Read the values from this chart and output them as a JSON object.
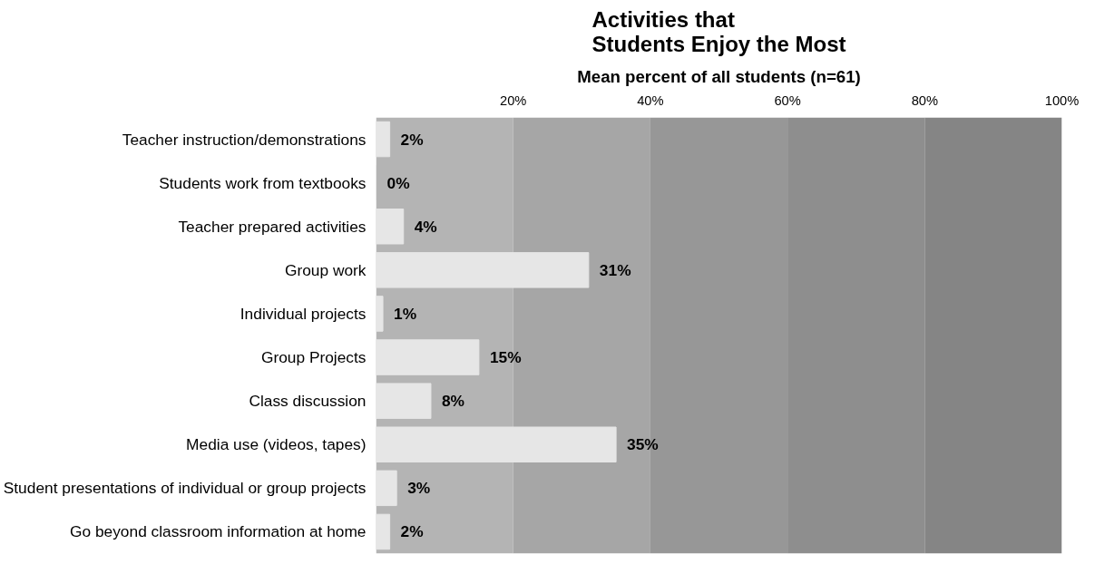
{
  "chart_data": {
    "type": "bar",
    "orientation": "horizontal",
    "title": "Activities that\nStudents Enjoy the Most",
    "subtitle": "Mean percent of all students (n=61)",
    "categories": [
      "Teacher instruction/demonstrations",
      "Students work from textbooks",
      "Teacher prepared activities",
      "Group work",
      "Individual projects",
      "Group Projects",
      "Class discussion",
      "Media use (videos, tapes)",
      "Student presentations of individual or group projects",
      "Go beyond classroom information at home"
    ],
    "values": [
      2,
      0,
      4,
      31,
      1,
      15,
      8,
      35,
      3,
      2
    ],
    "value_labels": [
      "2%",
      "0%",
      "4%",
      "31%",
      "1%",
      "15%",
      "8%",
      "35%",
      "3%",
      "2%"
    ],
    "color": "#e6e6e6",
    "xlim": [
      0,
      100
    ],
    "xticks": [
      {
        "value": 20,
        "label": "20%"
      },
      {
        "value": 40,
        "label": "40%"
      },
      {
        "value": 60,
        "label": "60%"
      },
      {
        "value": 80,
        "label": "80%"
      },
      {
        "value": 100,
        "label": "100%"
      }
    ],
    "bands": [
      {
        "axis": "x",
        "from": 0,
        "to": 20,
        "color": "#b4b4b4"
      },
      {
        "axis": "x",
        "from": 20,
        "to": 40,
        "color": "#a6a6a6"
      },
      {
        "axis": "x",
        "from": 40,
        "to": 60,
        "color": "#979797"
      },
      {
        "axis": "x",
        "from": 60,
        "to": 80,
        "color": "#8e8e8e"
      },
      {
        "axis": "x",
        "from": 80,
        "to": 100,
        "color": "#858585"
      }
    ],
    "grid": false
  }
}
